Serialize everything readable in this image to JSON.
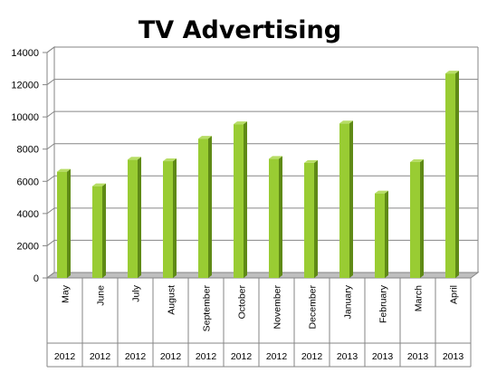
{
  "chart_data": {
    "type": "bar",
    "title": "TV Advertising",
    "categories": [
      "May",
      "June",
      "July",
      "August",
      "September",
      "October",
      "November",
      "December",
      "January",
      "February",
      "March",
      "April"
    ],
    "years": [
      "2012",
      "2012",
      "2012",
      "2012",
      "2012",
      "2012",
      "2012",
      "2012",
      "2013",
      "2013",
      "2013",
      "2013"
    ],
    "values": [
      6600,
      5700,
      7350,
      7250,
      8650,
      9550,
      7400,
      7150,
      9600,
      5250,
      7200,
      12700
    ],
    "ylim": [
      0,
      14000
    ],
    "yticks": [
      "0",
      "2000",
      "4000",
      "6000",
      "8000",
      "10000",
      "12000",
      "14000"
    ],
    "grid": true,
    "legend": "none",
    "colors": {
      "bar_front": "#99cc33",
      "bar_side": "#5f8a16",
      "bar_top": "#b7dd66",
      "grid": "#868686",
      "floor": "#bfbfbf"
    }
  }
}
